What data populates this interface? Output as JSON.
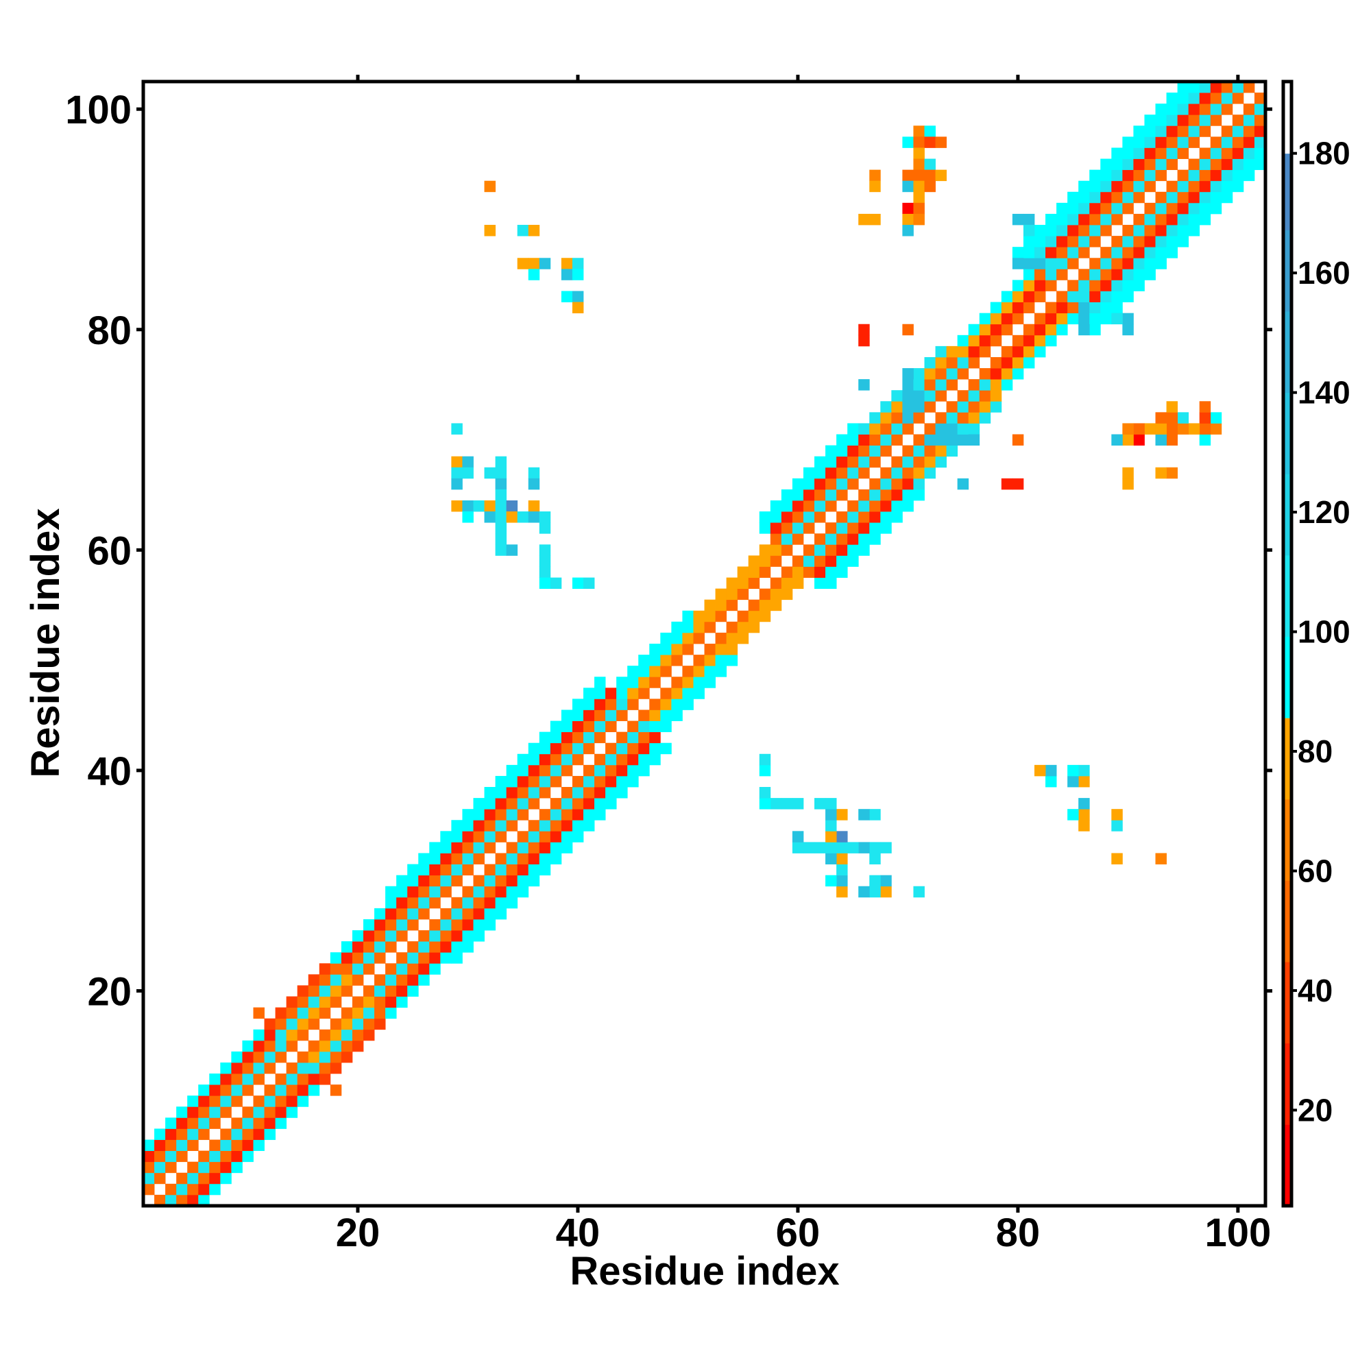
{
  "chart_data": {
    "type": "heatmap",
    "title": "",
    "xlabel": "Residue index",
    "ylabel": "Residue index",
    "xlim": [
      0.5,
      102.5
    ],
    "ylim": [
      0.5,
      102.5
    ],
    "n_residues": 102,
    "xticks": [
      "20",
      "40",
      "60",
      "80",
      "100"
    ],
    "yticks": [
      "20",
      "40",
      "60",
      "80",
      "100"
    ],
    "tick_values": [
      20,
      40,
      60,
      80,
      100
    ],
    "grid": false,
    "colorbar": {
      "range": [
        4,
        192
      ],
      "ticks": [
        20,
        40,
        60,
        80,
        100,
        120,
        140,
        160,
        180
      ],
      "tick_labels": [
        "20",
        "40",
        "60",
        "80",
        "100",
        "120",
        "140",
        "160",
        "180"
      ],
      "bins": [
        {
          "max": 17.6,
          "color": "#ff0000"
        },
        {
          "max": 31.2,
          "color": "#ff2000"
        },
        {
          "max": 44.8,
          "color": "#ff4000"
        },
        {
          "max": 58.4,
          "color": "#ff6a00"
        },
        {
          "max": 72.0,
          "color": "#ff8200"
        },
        {
          "max": 85.6,
          "color": "#ffa500"
        },
        {
          "max": 99.2,
          "color": "#00ffff"
        },
        {
          "max": 112.8,
          "color": "#1ee6f0"
        },
        {
          "max": 126.4,
          "color": "#20d2e6"
        },
        {
          "max": 140.0,
          "color": "#26c2e0"
        },
        {
          "max": 153.6,
          "color": "#30b0d8"
        },
        {
          "max": 167.2,
          "color": "#3a9ed0"
        },
        {
          "max": 180.0,
          "color": "#4a88c6"
        },
        {
          "max": 192.0,
          "color": "#ffffff"
        }
      ]
    },
    "diagonal_band": {
      "description_of_values": "value at offset d=|i-j| (d=1..n) per segment of residue midpoint",
      "segments": [
        {
          "from": 1,
          "to": 13.5,
          "profile": [
            55,
            110,
            55,
            20,
            92
          ]
        },
        {
          "from": 14,
          "to": 19.5,
          "profile": [
            55,
            78,
            110,
            55,
            35
          ]
        },
        {
          "from": 20,
          "to": 24.5,
          "profile": [
            55,
            110,
            55,
            20,
            92
          ]
        },
        {
          "from": 25,
          "to": 44.5,
          "profile": [
            55,
            110,
            55,
            20,
            92,
            92
          ]
        },
        {
          "from": 45,
          "to": 51.5,
          "profile": [
            55,
            78,
            92,
            92
          ]
        },
        {
          "from": 52,
          "to": 58.5,
          "profile": [
            55,
            78,
            78
          ]
        },
        {
          "from": 59,
          "to": 67.5,
          "profile": [
            55,
            110,
            55,
            20,
            92,
            92
          ]
        },
        {
          "from": 68,
          "to": 75.5,
          "profile": [
            55,
            110,
            55,
            78,
            110
          ]
        },
        {
          "from": 76,
          "to": 82.5,
          "profile": [
            45,
            20,
            78,
            92
          ]
        },
        {
          "from": 83,
          "to": 102,
          "profile": [
            55,
            110,
            55,
            20,
            110,
            92,
            92
          ]
        }
      ]
    },
    "symmetric_cells": [
      [
        11,
        18,
        55
      ],
      [
        29,
        71,
        110
      ],
      [
        29,
        68,
        78
      ],
      [
        30,
        68,
        140
      ],
      [
        33,
        68,
        110
      ],
      [
        29,
        67,
        110
      ],
      [
        30,
        67,
        110
      ],
      [
        32,
        67,
        110
      ],
      [
        33,
        67,
        110
      ],
      [
        36,
        67,
        110
      ],
      [
        29,
        66,
        140
      ],
      [
        33,
        66,
        140
      ],
      [
        36,
        66,
        140
      ],
      [
        33,
        65,
        110
      ],
      [
        29,
        64,
        78
      ],
      [
        30,
        64,
        140
      ],
      [
        31,
        64,
        110
      ],
      [
        32,
        64,
        78
      ],
      [
        33,
        64,
        110
      ],
      [
        34,
        64,
        170
      ],
      [
        36,
        64,
        78
      ],
      [
        30,
        63,
        92
      ],
      [
        32,
        63,
        140
      ],
      [
        33,
        63,
        110
      ],
      [
        34,
        63,
        78
      ],
      [
        35,
        63,
        110
      ],
      [
        36,
        63,
        140
      ],
      [
        37,
        63,
        110
      ],
      [
        33,
        62,
        110
      ],
      [
        37,
        62,
        110
      ],
      [
        33,
        61,
        110
      ],
      [
        33,
        60,
        110
      ],
      [
        34,
        60,
        140
      ],
      [
        37,
        60,
        110
      ],
      [
        37,
        59,
        110
      ],
      [
        37,
        58,
        110
      ],
      [
        37,
        57,
        92
      ],
      [
        38,
        57,
        110
      ],
      [
        40,
        57,
        92
      ],
      [
        41,
        57,
        110
      ],
      [
        32,
        93,
        72
      ],
      [
        32,
        89,
        78
      ],
      [
        35,
        89,
        110
      ],
      [
        36,
        89,
        78
      ],
      [
        35,
        86,
        78
      ],
      [
        36,
        86,
        78
      ],
      [
        37,
        86,
        140
      ],
      [
        39,
        86,
        78
      ],
      [
        40,
        86,
        105
      ],
      [
        36,
        85,
        92
      ],
      [
        39,
        85,
        140
      ],
      [
        40,
        85,
        92
      ],
      [
        39,
        83,
        92
      ],
      [
        40,
        83,
        140
      ],
      [
        40,
        82,
        78
      ],
      [
        71,
        98,
        72
      ],
      [
        72,
        98,
        92
      ],
      [
        70,
        97,
        92
      ],
      [
        71,
        97,
        45
      ],
      [
        72,
        97,
        35
      ],
      [
        73,
        97,
        50
      ],
      [
        71,
        96,
        78
      ],
      [
        71,
        95,
        72
      ],
      [
        72,
        95,
        110
      ],
      [
        67,
        94,
        72
      ],
      [
        70,
        94,
        55
      ],
      [
        71,
        94,
        55
      ],
      [
        72,
        94,
        45
      ],
      [
        73,
        94,
        78
      ],
      [
        67,
        93,
        78
      ],
      [
        70,
        93,
        140
      ],
      [
        71,
        93,
        78
      ],
      [
        72,
        93,
        55
      ],
      [
        71,
        92,
        78
      ],
      [
        70,
        91,
        10
      ],
      [
        71,
        91,
        55
      ],
      [
        66,
        90,
        78
      ],
      [
        67,
        90,
        78
      ],
      [
        70,
        90,
        78
      ],
      [
        71,
        90,
        60
      ],
      [
        70,
        89,
        140
      ],
      [
        66,
        80,
        30
      ],
      [
        66,
        79,
        30
      ],
      [
        70,
        80,
        50
      ],
      [
        66,
        75,
        140
      ],
      [
        70,
        72,
        140
      ],
      [
        70,
        73,
        140
      ],
      [
        71,
        73,
        140
      ],
      [
        70,
        74,
        140
      ],
      [
        71,
        74,
        140
      ],
      [
        70,
        75,
        140
      ],
      [
        71,
        75,
        110
      ],
      [
        70,
        76,
        140
      ],
      [
        80,
        90,
        140
      ],
      [
        81,
        90,
        140
      ],
      [
        81,
        89,
        110
      ],
      [
        80,
        86,
        140
      ],
      [
        81,
        86,
        140
      ],
      [
        82,
        86,
        140
      ],
      [
        83,
        86,
        110
      ],
      [
        84,
        86,
        110
      ]
    ]
  }
}
